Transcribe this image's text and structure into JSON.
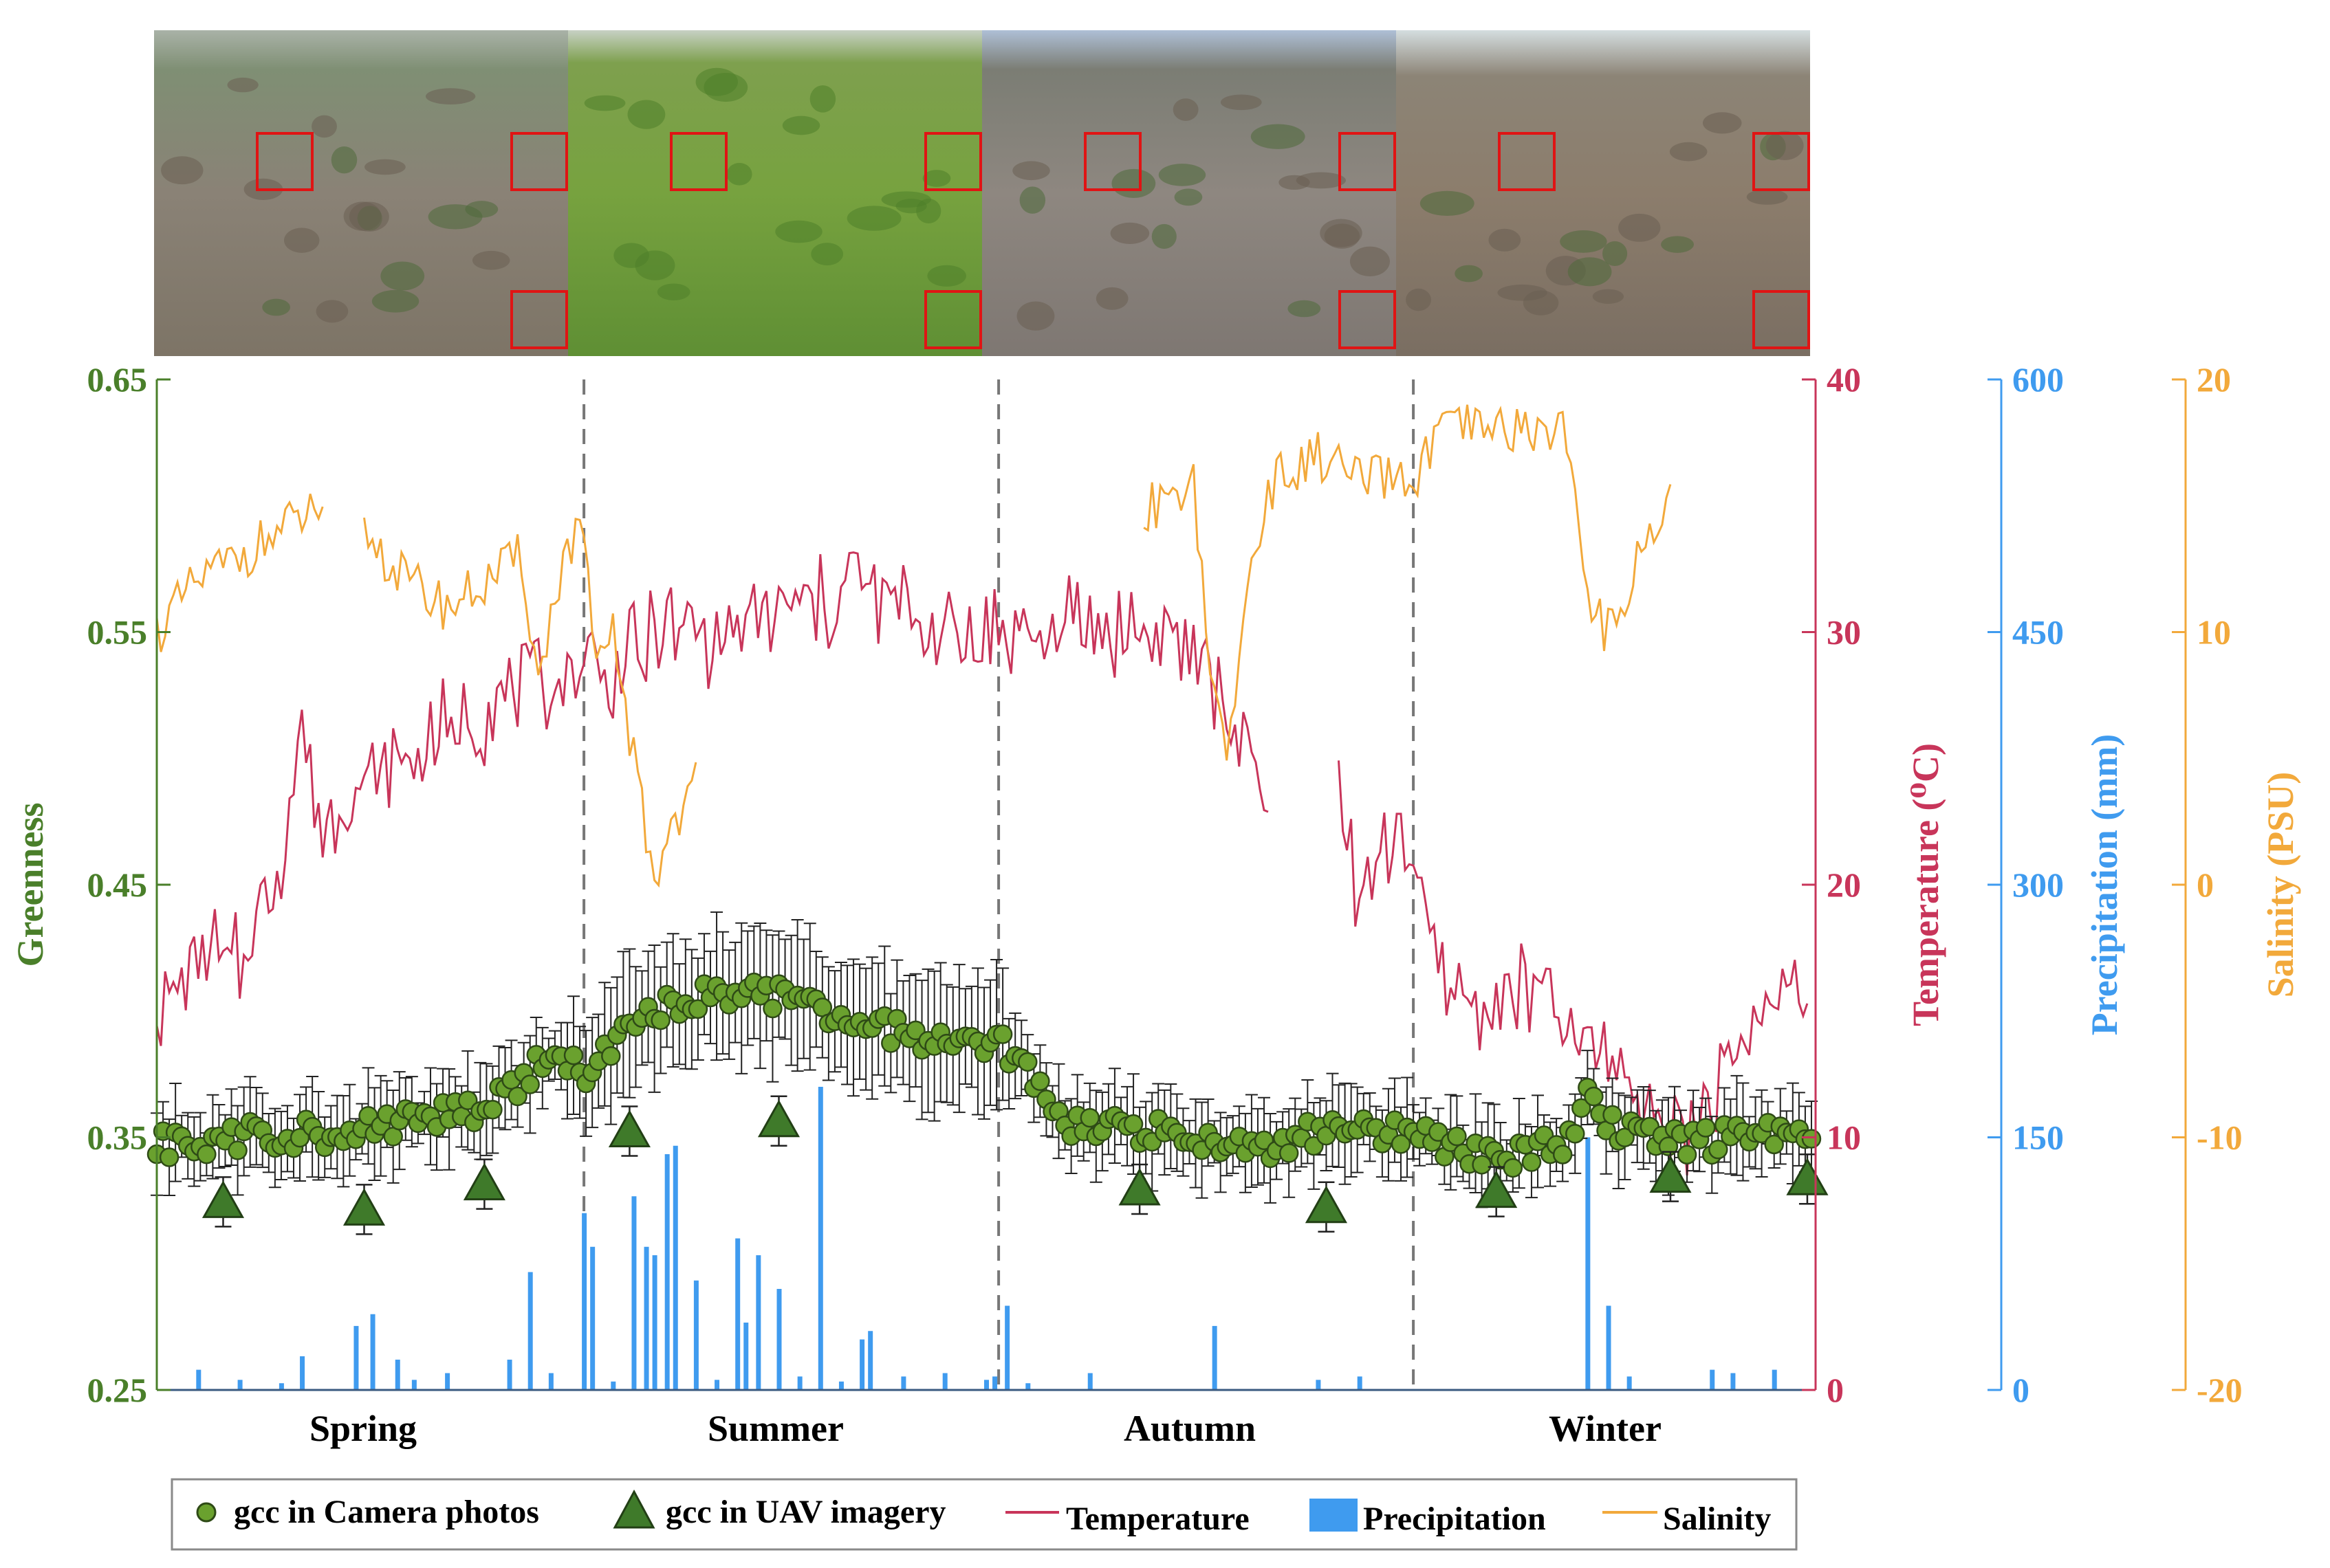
{
  "colors": {
    "greenness": "#4a7f2a",
    "camera_marker": "#6aa12e",
    "uav_marker": "#3f7a2a",
    "temperature": "#c8355a",
    "precipitation": "#3f9bef",
    "salinity": "#f2a93b"
  },
  "photos": [
    {
      "season": "Spring",
      "tone": "spring"
    },
    {
      "season": "Summer",
      "tone": "summer"
    },
    {
      "season": "Autumn",
      "tone": "autumn"
    },
    {
      "season": "Winter",
      "tone": "winter"
    }
  ],
  "chart_data": {
    "type": "line",
    "x_axis": {
      "categories": [
        "Spring",
        "Summer",
        "Autumn",
        "Winter"
      ],
      "range_days": [
        0,
        400
      ]
    },
    "axes": {
      "greenness": {
        "label": "Greenness",
        "ylim": [
          0.25,
          0.65
        ],
        "ticks": [
          "0.25",
          "0.35",
          "0.45",
          "0.55",
          "0.65"
        ]
      },
      "temperature": {
        "label": "Temperature (⁰C)",
        "ylim": [
          0,
          40
        ],
        "ticks": [
          "0",
          "10",
          "20",
          "30",
          "40"
        ]
      },
      "precipitation": {
        "label": "Precipitation (mm)",
        "ylim": [
          0,
          600
        ],
        "ticks": [
          "0",
          "150",
          "300",
          "450",
          "600"
        ]
      },
      "salinity": {
        "label": "Salinity (PSU)",
        "ylim": [
          -20,
          20
        ],
        "ticks": [
          "-20",
          "-10",
          "0",
          "10",
          "20"
        ]
      }
    },
    "season_boundaries": [
      103,
      203,
      303
    ],
    "legend": [
      {
        "key": "camera",
        "label": "gcc in Camera photos"
      },
      {
        "key": "uav",
        "label": "gcc in UAV imagery"
      },
      {
        "key": "temperature",
        "label": "Temperature"
      },
      {
        "key": "precipitation",
        "label": "Precipitation"
      },
      {
        "key": "salinity",
        "label": "Salinity"
      }
    ],
    "series": {
      "gcc_camera_anchors": [
        [
          0,
          0.346
        ],
        [
          10,
          0.349
        ],
        [
          20,
          0.35
        ],
        [
          30,
          0.352
        ],
        [
          40,
          0.351
        ],
        [
          50,
          0.354
        ],
        [
          60,
          0.356
        ],
        [
          70,
          0.36
        ],
        [
          80,
          0.362
        ],
        [
          85,
          0.368
        ],
        [
          90,
          0.376
        ],
        [
          95,
          0.382
        ],
        [
          100,
          0.38
        ],
        [
          103,
          0.372
        ],
        [
          110,
          0.385
        ],
        [
          120,
          0.4
        ],
        [
          130,
          0.405
        ],
        [
          140,
          0.408
        ],
        [
          150,
          0.406
        ],
        [
          160,
          0.4
        ],
        [
          170,
          0.398
        ],
        [
          180,
          0.39
        ],
        [
          190,
          0.386
        ],
        [
          200,
          0.386
        ],
        [
          203,
          0.39
        ],
        [
          210,
          0.375
        ],
        [
          220,
          0.356
        ],
        [
          230,
          0.353
        ],
        [
          240,
          0.352
        ],
        [
          250,
          0.349
        ],
        [
          260,
          0.346
        ],
        [
          270,
          0.348
        ],
        [
          280,
          0.352
        ],
        [
          290,
          0.353
        ],
        [
          300,
          0.352
        ],
        [
          303,
          0.353
        ],
        [
          310,
          0.348
        ],
        [
          320,
          0.344
        ],
        [
          330,
          0.343
        ],
        [
          340,
          0.348
        ],
        [
          345,
          0.365
        ],
        [
          350,
          0.354
        ],
        [
          360,
          0.349
        ],
        [
          370,
          0.348
        ],
        [
          380,
          0.35
        ],
        [
          390,
          0.352
        ],
        [
          400,
          0.348
        ]
      ],
      "gcc_uav": [
        [
          16,
          0.325
        ],
        [
          50,
          0.322
        ],
        [
          79,
          0.332
        ],
        [
          114,
          0.353
        ],
        [
          150,
          0.357
        ],
        [
          237,
          0.33
        ],
        [
          282,
          0.323
        ],
        [
          323,
          0.329
        ],
        [
          365,
          0.335
        ],
        [
          398,
          0.334
        ]
      ],
      "temperature_anchors": [
        [
          0,
          15
        ],
        [
          10,
          17
        ],
        [
          20,
          17
        ],
        [
          30,
          21
        ],
        [
          35,
          26
        ],
        [
          40,
          22
        ],
        [
          50,
          24
        ],
        [
          60,
          25
        ],
        [
          70,
          26
        ],
        [
          80,
          27
        ],
        [
          90,
          28
        ],
        [
          100,
          28
        ],
        [
          103,
          29
        ],
        [
          110,
          28
        ],
        [
          120,
          30
        ],
        [
          130,
          30
        ],
        [
          140,
          30
        ],
        [
          150,
          31
        ],
        [
          160,
          31
        ],
        [
          170,
          32
        ],
        [
          180,
          31
        ],
        [
          190,
          30
        ],
        [
          200,
          30
        ],
        [
          203,
          30
        ],
        [
          210,
          30
        ],
        [
          220,
          30
        ],
        [
          230,
          30
        ],
        [
          240,
          30
        ],
        [
          250,
          29
        ],
        [
          260,
          26
        ],
        [
          270,
          22
        ],
        [
          285,
          24
        ],
        [
          290,
          19
        ],
        [
          300,
          23
        ],
        [
          303,
          20
        ],
        [
          310,
          16
        ],
        [
          320,
          15
        ],
        [
          330,
          16
        ],
        [
          340,
          14
        ],
        [
          350,
          13
        ],
        [
          360,
          11
        ],
        [
          370,
          10
        ],
        [
          380,
          13
        ],
        [
          390,
          16
        ],
        [
          400,
          15
        ]
      ],
      "temperature_gaps": [
        [
          268,
          285
        ]
      ],
      "salinity_anchors": [
        [
          0,
          10
        ],
        [
          10,
          12
        ],
        [
          20,
          13
        ],
        [
          30,
          14
        ],
        [
          40,
          15
        ],
        [
          45,
          14
        ],
        [
          50,
          14
        ],
        [
          60,
          12
        ],
        [
          70,
          11
        ],
        [
          80,
          12
        ],
        [
          88,
          13
        ],
        [
          92,
          8
        ],
        [
          98,
          13
        ],
        [
          103,
          14
        ],
        [
          106,
          8
        ],
        [
          110,
          10
        ],
        [
          115,
          5
        ],
        [
          120,
          0
        ],
        [
          123,
          2
        ],
        [
          130,
          4
        ],
        [
          240,
          15
        ],
        [
          250,
          16
        ],
        [
          255,
          7
        ],
        [
          258,
          5
        ],
        [
          265,
          14
        ],
        [
          270,
          16
        ],
        [
          280,
          17
        ],
        [
          290,
          16
        ],
        [
          300,
          16
        ],
        [
          303,
          16
        ],
        [
          310,
          18
        ],
        [
          320,
          18
        ],
        [
          330,
          18
        ],
        [
          340,
          18
        ],
        [
          345,
          11
        ],
        [
          350,
          10
        ],
        [
          360,
          14
        ],
        [
          365,
          15
        ]
      ],
      "salinity_gaps": [
        [
          40,
          50
        ],
        [
          130,
          238
        ],
        [
          365,
          400
        ]
      ],
      "precipitation_events": [
        [
          10,
          12
        ],
        [
          20,
          6
        ],
        [
          30,
          4
        ],
        [
          35,
          20
        ],
        [
          48,
          38
        ],
        [
          52,
          45
        ],
        [
          58,
          18
        ],
        [
          62,
          6
        ],
        [
          70,
          10
        ],
        [
          85,
          18
        ],
        [
          90,
          70
        ],
        [
          95,
          10
        ],
        [
          103,
          105
        ],
        [
          105,
          85
        ],
        [
          110,
          5
        ],
        [
          115,
          115
        ],
        [
          118,
          85
        ],
        [
          120,
          80
        ],
        [
          123,
          140
        ],
        [
          125,
          145
        ],
        [
          130,
          65
        ],
        [
          135,
          6
        ],
        [
          140,
          90
        ],
        [
          142,
          40
        ],
        [
          145,
          80
        ],
        [
          150,
          60
        ],
        [
          155,
          8
        ],
        [
          160,
          180
        ],
        [
          165,
          5
        ],
        [
          170,
          30
        ],
        [
          172,
          35
        ],
        [
          180,
          8
        ],
        [
          190,
          10
        ],
        [
          200,
          6
        ],
        [
          202,
          8
        ],
        [
          205,
          50
        ],
        [
          210,
          4
        ],
        [
          225,
          10
        ],
        [
          255,
          38
        ],
        [
          280,
          6
        ],
        [
          290,
          8
        ],
        [
          345,
          150
        ],
        [
          350,
          50
        ],
        [
          355,
          8
        ],
        [
          375,
          12
        ],
        [
          380,
          10
        ],
        [
          390,
          12
        ]
      ]
    }
  }
}
